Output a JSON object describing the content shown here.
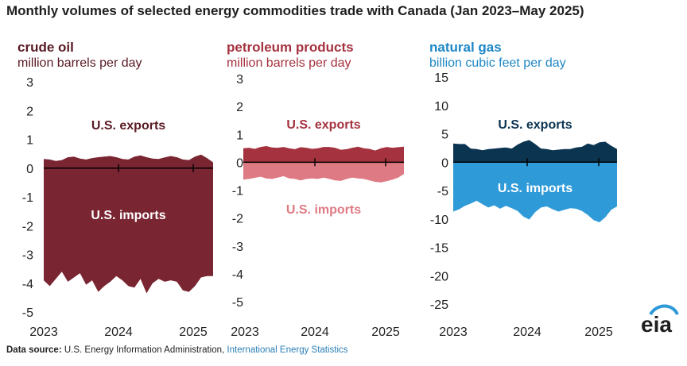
{
  "title": "Monthly volumes of selected energy commodities trade with Canada (Jan 2023–May 2025)",
  "footer": {
    "label": "Data source:",
    "source": "U.S. Energy Information Administration,",
    "link": "International Energy Statistics"
  },
  "logo_text": "eia",
  "colors": {
    "crude_dark": "#7a2532",
    "petro_dark": "#a5323f",
    "petro_light": "#de7a83",
    "gas_dark": "#0b3451",
    "gas_light": "#2f9ad8",
    "gas_text": "#1d87c6",
    "axis": "#000000"
  },
  "panels": [
    {
      "title": "crude oil",
      "unit": "million barrels per day",
      "title_color": "#5a1a24",
      "unit_color": "#5a1a24"
    },
    {
      "title": "petroleum products",
      "unit": "million barrels per day",
      "title_color": "#a5323f",
      "unit_color": "#a5323f"
    },
    {
      "title": "natural gas",
      "unit": "billion cubic feet per day",
      "title_color": "#1d87c6",
      "unit_color": "#1d87c6"
    }
  ],
  "chart_data": [
    {
      "type": "area",
      "title": "crude oil",
      "ylabel": "million barrels per day",
      "ylim": [
        -5,
        3
      ],
      "yticks": [
        3,
        2,
        1,
        0,
        -1,
        -2,
        -3,
        -4,
        -5
      ],
      "xticks": [
        "2023",
        "2024",
        "2025"
      ],
      "x_start": "2023-01",
      "x_end": "2025-05",
      "series": [
        {
          "name": "U.S. exports",
          "label_color": "#5a1a24",
          "fill": "#7a2532",
          "values": [
            0.32,
            0.3,
            0.25,
            0.28,
            0.38,
            0.4,
            0.33,
            0.3,
            0.35,
            0.38,
            0.4,
            0.42,
            0.38,
            0.32,
            0.3,
            0.4,
            0.44,
            0.38,
            0.33,
            0.32,
            0.37,
            0.42,
            0.38,
            0.3,
            0.28,
            0.4,
            0.47,
            0.35,
            0.2
          ]
        },
        {
          "name": "U.S. imports",
          "label_color": "#ffffff",
          "fill": "#7a2532",
          "values": [
            -3.9,
            -4.1,
            -3.85,
            -3.6,
            -3.95,
            -3.8,
            -3.65,
            -4.05,
            -3.9,
            -4.3,
            -4.1,
            -3.95,
            -3.75,
            -3.9,
            -4.1,
            -4.15,
            -3.85,
            -4.35,
            -4.0,
            -3.85,
            -3.95,
            -3.9,
            -3.95,
            -4.25,
            -4.3,
            -4.1,
            -3.8,
            -3.75,
            -3.75
          ]
        }
      ]
    },
    {
      "type": "area",
      "title": "petroleum products",
      "ylabel": "million barrels per day",
      "ylim": [
        -5,
        3
      ],
      "yticks": [
        3,
        2,
        1,
        0,
        -1,
        -2,
        -3,
        -4,
        -5
      ],
      "xticks": [
        "2023",
        "2024",
        "2025"
      ],
      "x_start": "2023-01",
      "x_end": "2025-05",
      "series": [
        {
          "name": "U.S. exports",
          "label_color": "#a5323f",
          "fill": "#a5323f",
          "values": [
            0.5,
            0.52,
            0.48,
            0.55,
            0.58,
            0.53,
            0.52,
            0.55,
            0.5,
            0.47,
            0.54,
            0.52,
            0.48,
            0.5,
            0.55,
            0.55,
            0.52,
            0.45,
            0.47,
            0.52,
            0.56,
            0.5,
            0.48,
            0.42,
            0.5,
            0.55,
            0.52,
            0.54,
            0.56
          ]
        },
        {
          "name": "U.S. imports",
          "label_color": "#de7a83",
          "fill": "#de7a83",
          "values": [
            -0.62,
            -0.6,
            -0.56,
            -0.52,
            -0.58,
            -0.6,
            -0.55,
            -0.5,
            -0.58,
            -0.6,
            -0.65,
            -0.6,
            -0.58,
            -0.6,
            -0.55,
            -0.6,
            -0.65,
            -0.67,
            -0.6,
            -0.55,
            -0.58,
            -0.6,
            -0.65,
            -0.7,
            -0.72,
            -0.68,
            -0.62,
            -0.55,
            -0.42
          ]
        }
      ]
    },
    {
      "type": "area",
      "title": "natural gas",
      "ylabel": "billion cubic feet per day",
      "ylim": [
        -25,
        15
      ],
      "yticks": [
        15,
        10,
        5,
        0,
        -5,
        -10,
        -15,
        -20,
        -25
      ],
      "xticks": [
        "2023",
        "2024",
        "2025"
      ],
      "x_start": "2023-01",
      "x_end": "2025-05",
      "series": [
        {
          "name": "U.S. exports",
          "label_color": "#0b3451",
          "fill": "#0b3451",
          "values": [
            3.3,
            3.2,
            3.2,
            2.4,
            2.3,
            2.1,
            2.3,
            2.4,
            2.5,
            2.6,
            2.4,
            3.1,
            3.6,
            3.9,
            3.2,
            2.4,
            2.3,
            2.1,
            2.2,
            2.3,
            2.3,
            2.6,
            2.7,
            3.3,
            3.0,
            3.5,
            3.6,
            2.9,
            2.3
          ]
        },
        {
          "name": "U.S. imports",
          "label_color": "#ffffff",
          "fill": "#2f9ad8",
          "values": [
            -8.7,
            -8.3,
            -7.7,
            -7.3,
            -6.8,
            -7.4,
            -8.0,
            -7.6,
            -8.2,
            -7.7,
            -8.1,
            -8.6,
            -9.6,
            -10.1,
            -8.8,
            -8.0,
            -7.8,
            -8.3,
            -8.7,
            -8.4,
            -8.1,
            -8.2,
            -8.6,
            -9.3,
            -10.2,
            -10.6,
            -9.7,
            -8.4,
            -7.8
          ]
        }
      ]
    }
  ]
}
